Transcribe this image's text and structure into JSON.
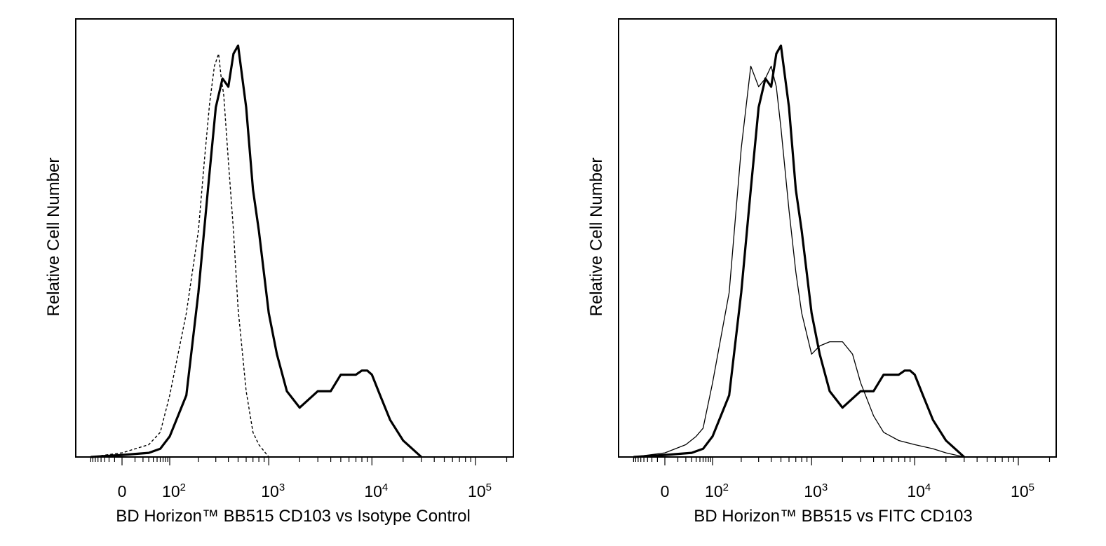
{
  "chart_data": [
    {
      "type": "line",
      "title": "",
      "xlabel": "BD Horizon™ BB515 CD103 vs Isotype Control",
      "ylabel": "Relative Cell Number",
      "x_scale": "biexponential",
      "xlim": [
        -40,
        250000
      ],
      "ylim": [
        0,
        1
      ],
      "grid": false,
      "x_ticks": [
        {
          "base": "0",
          "exp": ""
        },
        {
          "base": "10",
          "exp": "2"
        },
        {
          "base": "10",
          "exp": "3"
        },
        {
          "base": "10",
          "exp": "4"
        },
        {
          "base": "10",
          "exp": "5"
        }
      ],
      "series": [
        {
          "name": "BD Horizon BB515 CD103",
          "style": "thick",
          "x": [
            -40,
            0,
            30,
            60,
            100,
            150,
            200,
            250,
            300,
            350,
            400,
            450,
            500,
            600,
            700,
            800,
            1000,
            1200,
            1500,
            2000,
            3000,
            4000,
            5000,
            7000,
            8000,
            9000,
            10000,
            12000,
            15000,
            20000,
            30000
          ],
          "y": [
            0.0,
            0.005,
            0.01,
            0.02,
            0.05,
            0.15,
            0.4,
            0.65,
            0.85,
            0.92,
            0.9,
            0.98,
            1.0,
            0.85,
            0.65,
            0.55,
            0.35,
            0.25,
            0.16,
            0.12,
            0.16,
            0.16,
            0.2,
            0.2,
            0.21,
            0.21,
            0.2,
            0.15,
            0.09,
            0.04,
            0.0
          ]
        },
        {
          "name": "Isotype Control",
          "style": "dashed",
          "x": [
            -40,
            0,
            30,
            60,
            100,
            150,
            200,
            230,
            260,
            290,
            320,
            340,
            360,
            400,
            450,
            500,
            600,
            700,
            800,
            1000,
            1200
          ],
          "y": [
            0.0,
            0.01,
            0.03,
            0.06,
            0.15,
            0.35,
            0.55,
            0.72,
            0.86,
            0.95,
            0.98,
            0.92,
            0.88,
            0.72,
            0.55,
            0.36,
            0.16,
            0.06,
            0.03,
            0.0,
            0.0
          ]
        }
      ]
    },
    {
      "type": "line",
      "title": "",
      "xlabel": "BD Horizon™ BB515  vs FITC CD103",
      "ylabel": "Relative Cell Number",
      "x_scale": "biexponential",
      "xlim": [
        -40,
        250000
      ],
      "ylim": [
        0,
        1
      ],
      "grid": false,
      "x_ticks": [
        {
          "base": "0",
          "exp": ""
        },
        {
          "base": "10",
          "exp": "2"
        },
        {
          "base": "10",
          "exp": "3"
        },
        {
          "base": "10",
          "exp": "4"
        },
        {
          "base": "10",
          "exp": "5"
        }
      ],
      "series": [
        {
          "name": "BD Horizon BB515 CD103",
          "style": "thick",
          "x": [
            -40,
            0,
            30,
            60,
            100,
            150,
            200,
            250,
            300,
            350,
            400,
            450,
            500,
            600,
            700,
            800,
            1000,
            1200,
            1500,
            2000,
            3000,
            4000,
            5000,
            7000,
            8000,
            9000,
            10000,
            12000,
            15000,
            20000,
            30000
          ],
          "y": [
            0.0,
            0.005,
            0.01,
            0.02,
            0.05,
            0.15,
            0.4,
            0.65,
            0.85,
            0.92,
            0.9,
            0.98,
            1.0,
            0.85,
            0.65,
            0.55,
            0.35,
            0.25,
            0.16,
            0.12,
            0.16,
            0.16,
            0.2,
            0.2,
            0.21,
            0.21,
            0.2,
            0.15,
            0.09,
            0.04,
            0.0
          ]
        },
        {
          "name": "FITC CD103",
          "style": "thin",
          "x": [
            -40,
            0,
            20,
            40,
            60,
            100,
            150,
            200,
            250,
            300,
            350,
            400,
            450,
            500,
            600,
            700,
            800,
            1000,
            1200,
            1500,
            2000,
            2500,
            3000,
            4000,
            5000,
            7000,
            10000,
            15000,
            20000,
            30000
          ],
          "y": [
            0.0,
            0.01,
            0.03,
            0.05,
            0.07,
            0.18,
            0.4,
            0.75,
            0.95,
            0.9,
            0.92,
            0.95,
            0.9,
            0.8,
            0.6,
            0.45,
            0.35,
            0.25,
            0.27,
            0.28,
            0.28,
            0.25,
            0.18,
            0.1,
            0.06,
            0.04,
            0.03,
            0.02,
            0.01,
            0.0
          ]
        }
      ]
    }
  ]
}
